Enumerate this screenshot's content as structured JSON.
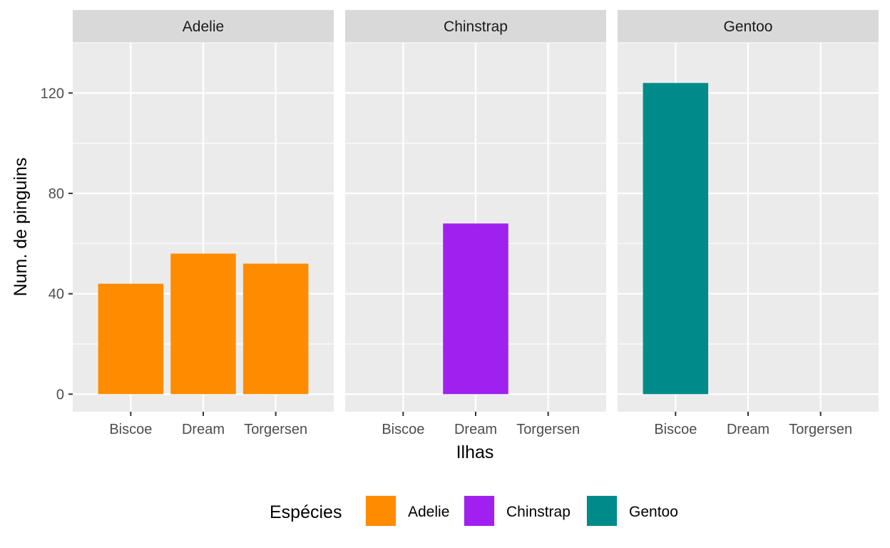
{
  "chart_data": {
    "type": "bar",
    "facet_by": "species",
    "xlabel": "Ilhas",
    "ylabel": "Num. de pinguins",
    "ylim": [
      -7,
      140
    ],
    "yticks": [
      0,
      40,
      80,
      120
    ],
    "categories": [
      "Biscoe",
      "Dream",
      "Torgersen"
    ],
    "panels": [
      {
        "name": "Adelie",
        "color": "#ff8c00",
        "values": [
          44,
          56,
          52
        ]
      },
      {
        "name": "Chinstrap",
        "color": "#a020f0",
        "values": [
          0,
          68,
          0
        ]
      },
      {
        "name": "Gentoo",
        "color": "#008b8b",
        "values": [
          124,
          0,
          0
        ]
      }
    ],
    "legend": {
      "title": "Espécies",
      "position": "bottom",
      "items": [
        {
          "label": "Adelie",
          "color": "#ff8c00"
        },
        {
          "label": "Chinstrap",
          "color": "#a020f0"
        },
        {
          "label": "Gentoo",
          "color": "#008b8b"
        }
      ]
    },
    "grid": true
  }
}
